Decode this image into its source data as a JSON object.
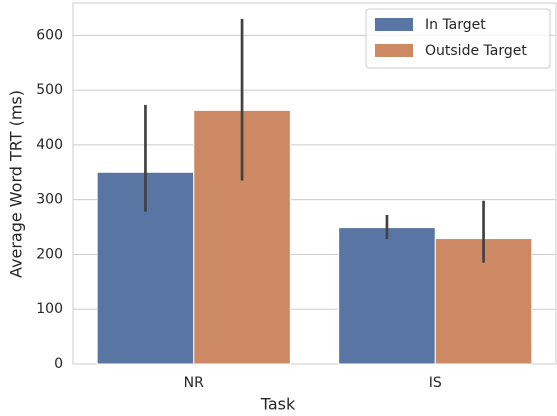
{
  "chart_data": {
    "type": "bar",
    "xlabel": "Task",
    "ylabel": "Average Word TRT (ms)",
    "categories": [
      "NR",
      "IS"
    ],
    "series": [
      {
        "name": "In Target",
        "color": "#5975a4",
        "values": [
          350,
          249
        ],
        "ci_low": [
          278,
          228
        ],
        "ci_high": [
          473,
          272
        ]
      },
      {
        "name": "Outside Target",
        "color": "#cc8963",
        "values": [
          463,
          229
        ],
        "ci_low": [
          335,
          185
        ],
        "ci_high": [
          630,
          298
        ]
      }
    ],
    "ylim": [
      0,
      659
    ],
    "yticks": [
      0,
      100,
      200,
      300,
      400,
      500,
      600
    ],
    "grid": true,
    "legend": "upper right"
  }
}
